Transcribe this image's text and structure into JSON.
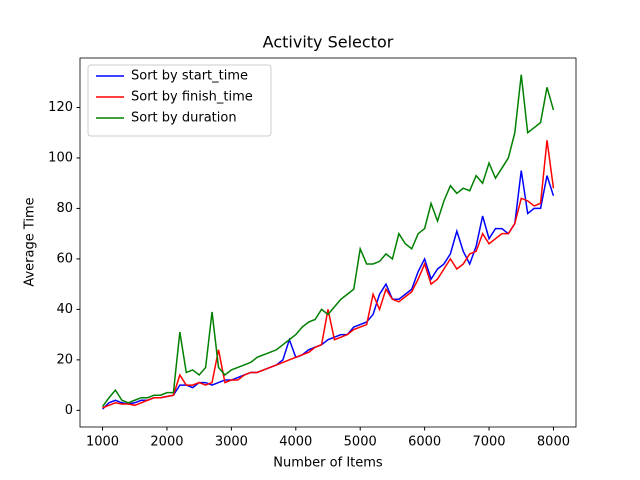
{
  "chart_data": {
    "type": "line",
    "title": "Activity Selector",
    "xlabel": "Number of Items",
    "ylabel": "Average Time",
    "x": [
      1000,
      1100,
      1200,
      1300,
      1400,
      1500,
      1600,
      1700,
      1800,
      1900,
      2000,
      2100,
      2200,
      2300,
      2400,
      2500,
      2600,
      2700,
      2800,
      2900,
      3000,
      3100,
      3200,
      3300,
      3400,
      3500,
      3600,
      3700,
      3800,
      3900,
      4000,
      4100,
      4200,
      4300,
      4400,
      4500,
      4600,
      4700,
      4800,
      4900,
      5000,
      5100,
      5200,
      5300,
      5400,
      5500,
      5600,
      5700,
      5800,
      5900,
      6000,
      6100,
      6200,
      6300,
      6400,
      6500,
      6600,
      6700,
      6800,
      6900,
      7000,
      7100,
      7200,
      7300,
      7400,
      7500,
      7600,
      7700,
      7800,
      7900,
      8000
    ],
    "series": [
      {
        "name": "Sort by start_time",
        "color": "#0000ff",
        "values": [
          0.5,
          3,
          4,
          3,
          2.5,
          3,
          4,
          4,
          5,
          5,
          5.5,
          6,
          10,
          10,
          9,
          11,
          11,
          10,
          11,
          12,
          12,
          13,
          14,
          15,
          15,
          16,
          17,
          18,
          20,
          28,
          21,
          22,
          24,
          25,
          26,
          28,
          29,
          30,
          30,
          33,
          34,
          35,
          38,
          46,
          50,
          44,
          44,
          46,
          48,
          55,
          60,
          52,
          56,
          58,
          62,
          71,
          63,
          58,
          65,
          77,
          68,
          72,
          72,
          70,
          74,
          95,
          78,
          80,
          80,
          93,
          85
        ]
      },
      {
        "name": "Sort by finish_time",
        "color": "#ff0000",
        "values": [
          1,
          2,
          3,
          2.5,
          2.5,
          2,
          3,
          4,
          5,
          5,
          5.5,
          6,
          14,
          10,
          10,
          11,
          10,
          11,
          24,
          11,
          12,
          12,
          14,
          15,
          15,
          16,
          17,
          18,
          19,
          20,
          21,
          22,
          23,
          25,
          26,
          40,
          28,
          29,
          30,
          32,
          33,
          34,
          46,
          40,
          48,
          44,
          43,
          45,
          47,
          52,
          58,
          50,
          52,
          56,
          60,
          56,
          58,
          62,
          63,
          70,
          66,
          68,
          70,
          70,
          74,
          84,
          83,
          81,
          82,
          107,
          88
        ]
      },
      {
        "name": "Sort by duration",
        "color": "#008000",
        "values": [
          1.5,
          5,
          8,
          4,
          3,
          4,
          5,
          5,
          6,
          6,
          7,
          7,
          31,
          15,
          16,
          14,
          17,
          39,
          17,
          14,
          16,
          17,
          18,
          19,
          21,
          22,
          23,
          24,
          26,
          28,
          30,
          33,
          35,
          36,
          40,
          38,
          41,
          44,
          46,
          48,
          64,
          58,
          58,
          59,
          62,
          60,
          70,
          66,
          64,
          70,
          72,
          82,
          75,
          83,
          89,
          86,
          88,
          87,
          93,
          90,
          98,
          92,
          96,
          100,
          110,
          133,
          110,
          112,
          114,
          128,
          119
        ]
      }
    ],
    "xlim": [
      650,
      8350
    ],
    "ylim": [
      -6.6,
      139.6
    ],
    "xticks": [
      1000,
      2000,
      3000,
      4000,
      5000,
      6000,
      7000,
      8000
    ],
    "yticks": [
      0,
      20,
      40,
      60,
      80,
      100,
      120
    ],
    "legend": "upper left",
    "grid": false
  }
}
